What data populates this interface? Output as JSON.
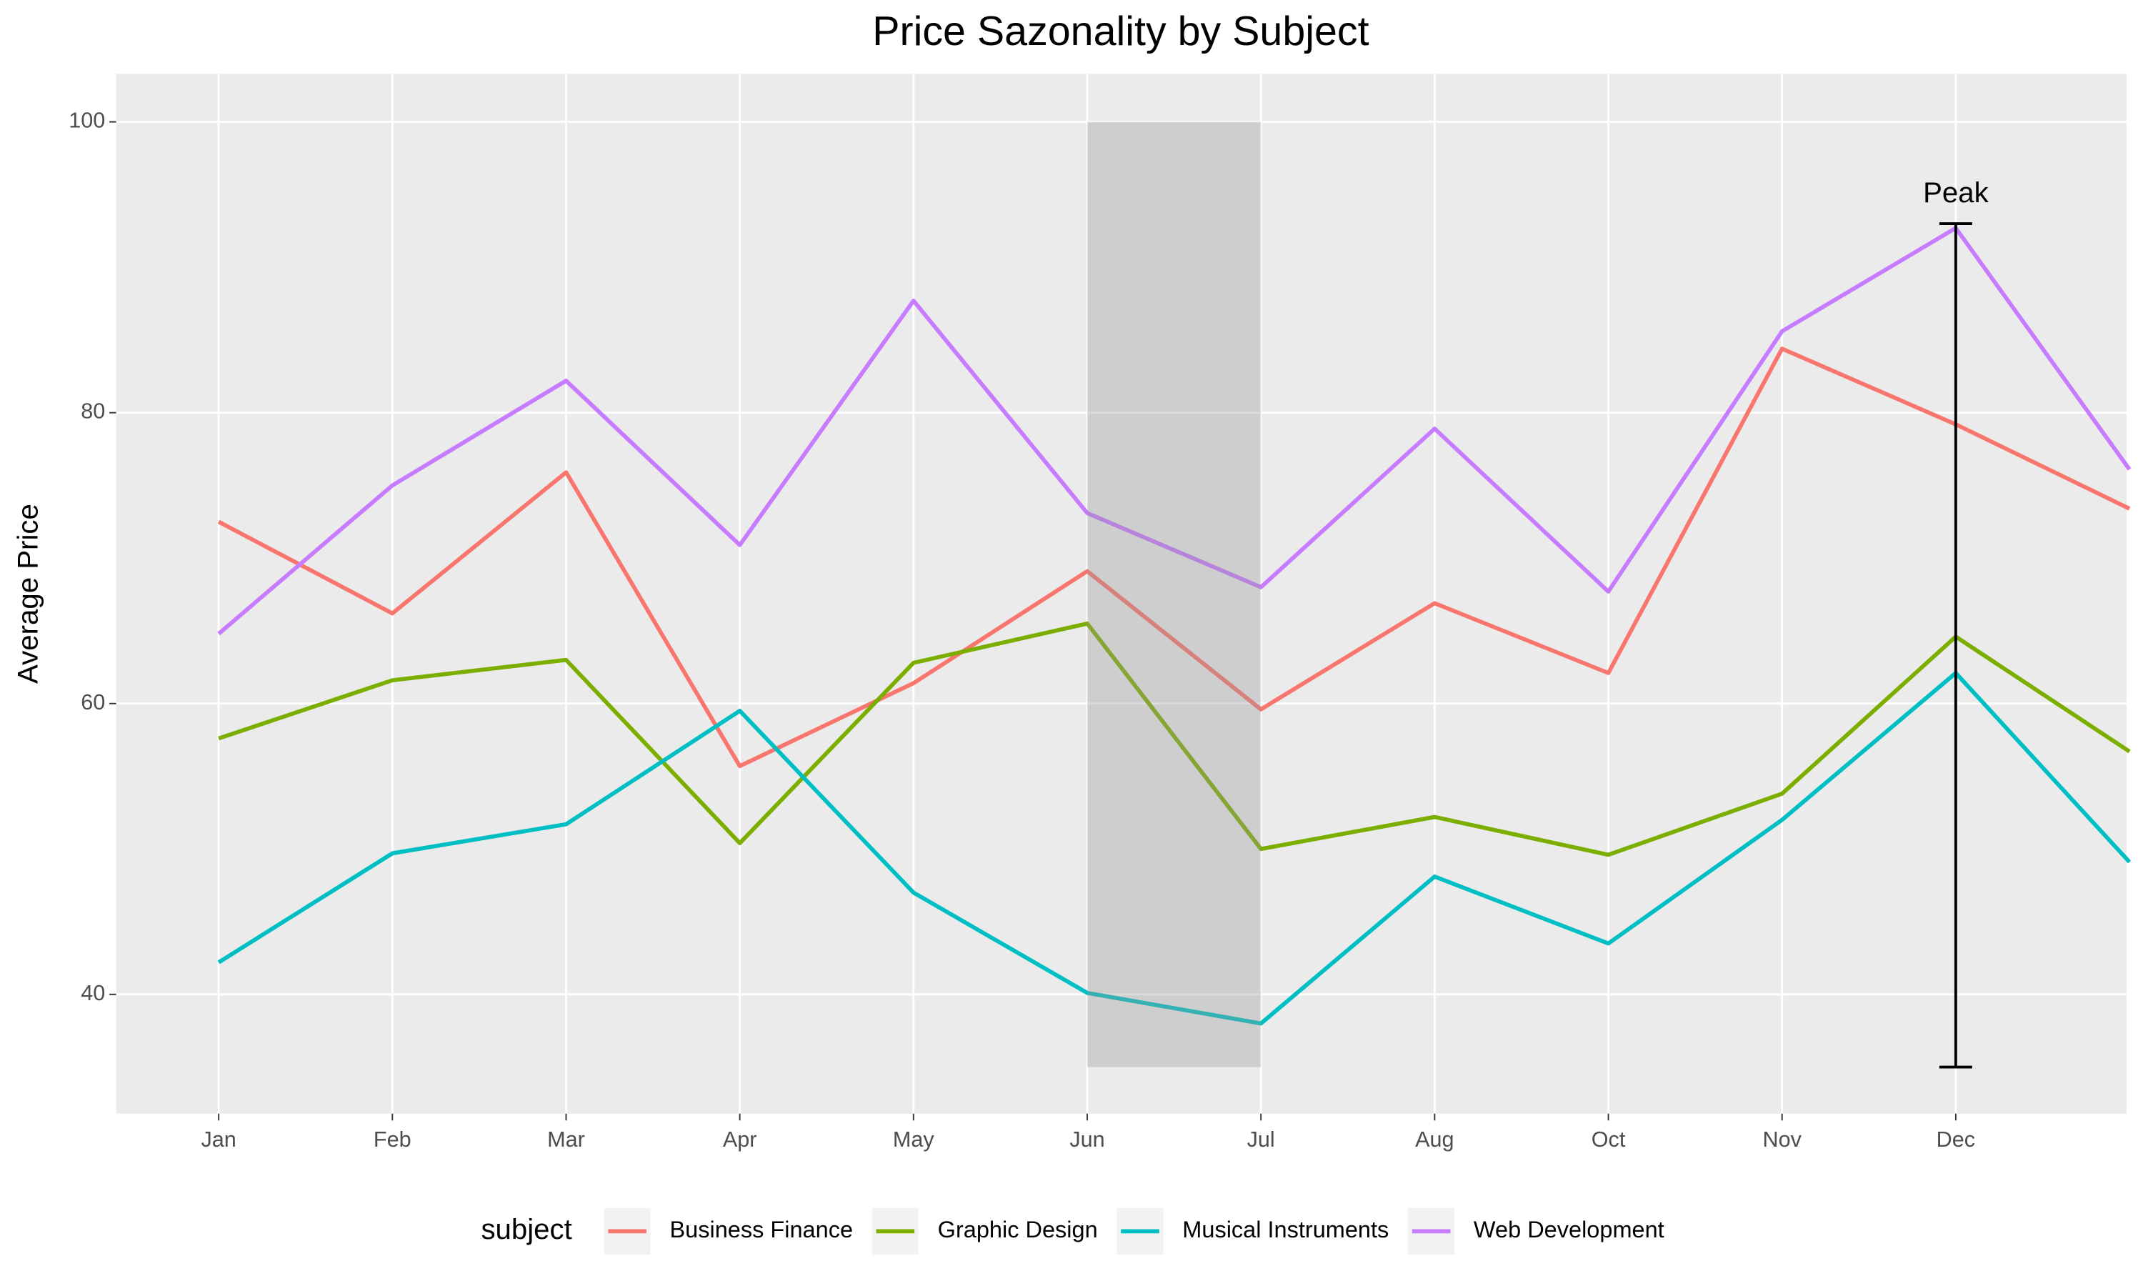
{
  "chart_data": {
    "type": "line",
    "title": "Price Sazonality by Subject",
    "y_label": "Average Price",
    "legend_title": "subject",
    "legend_position": "bottom",
    "grid": true,
    "categories": [
      "Jan",
      "Feb",
      "Mar",
      "Apr",
      "May",
      "Jun",
      "Jul",
      "Aug",
      "Oct",
      "Nov",
      "Dec",
      null
    ],
    "ylim": [
      31.8,
      103.3
    ],
    "yticks": [
      40,
      60,
      80,
      100
    ],
    "series": [
      {
        "name": "Business Finance",
        "color": "#F8766D",
        "values": [
          72.5,
          66.2,
          75.9,
          55.7,
          61.4,
          69.1,
          59.6,
          66.9,
          62.1,
          84.4,
          79.2,
          73.4
        ]
      },
      {
        "name": "Graphic Design",
        "color": "#7CAE00",
        "values": [
          57.6,
          61.6,
          63.0,
          50.4,
          62.8,
          65.5,
          50.0,
          52.2,
          49.6,
          53.8,
          64.6,
          56.7
        ]
      },
      {
        "name": "Musical Instruments",
        "color": "#00BFC4",
        "values": [
          42.2,
          49.7,
          51.7,
          59.5,
          47.0,
          40.1,
          38.0,
          48.1,
          43.5,
          52.0,
          62.1,
          49.1
        ]
      },
      {
        "name": "Web Development",
        "color": "#C77CFF",
        "values": [
          64.8,
          75.0,
          82.2,
          70.9,
          87.7,
          73.1,
          68.0,
          78.9,
          67.7,
          85.6,
          92.7,
          76.1
        ]
      }
    ],
    "shade": {
      "xmin": "Jun",
      "xmax": "Jul",
      "ymin": 35,
      "ymax": 100,
      "color": "#999999"
    },
    "error_bar": {
      "category": "Dec",
      "ymin": 35,
      "ymax": 93,
      "color": "#000000"
    },
    "annotation": {
      "label": "Peak",
      "category": "Dec",
      "y": 95
    }
  }
}
